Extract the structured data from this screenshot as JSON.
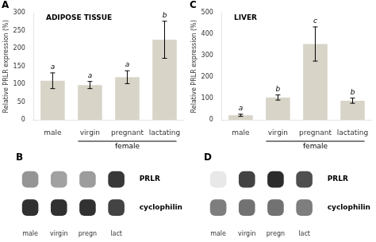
{
  "chart_data": [
    {
      "type": "bar",
      "title": "A",
      "subtitle": "ADIPOSE TISSUE",
      "categories": [
        "male",
        "virgin",
        "pregnant",
        "lactating"
      ],
      "values": [
        110,
        98,
        120,
        225
      ],
      "errors": [
        22,
        10,
        18,
        52
      ],
      "color": "#d8d4c8",
      "ylabel": "Relative PRLR expression (%)",
      "ylim": [
        0,
        300
      ],
      "yticks": [
        0,
        50,
        100,
        150,
        200,
        250,
        300
      ],
      "grid": false,
      "annotations": [
        {
          "text": "a",
          "category": "male"
        },
        {
          "text": "a",
          "category": "virgin"
        },
        {
          "text": "a",
          "category": "pregnant"
        },
        {
          "text": "b",
          "category": "lactating"
        },
        {
          "text": "female",
          "categories": [
            "virgin",
            "pregnant",
            "lactating"
          ]
        }
      ]
    },
    {
      "type": "bar",
      "title": "C",
      "subtitle": "LIVER",
      "categories": [
        "male",
        "virgin",
        "pregnant",
        "lactating"
      ],
      "values": [
        22,
        105,
        355,
        90
      ],
      "errors": [
        5,
        12,
        80,
        12
      ],
      "color": "#d8d4c8",
      "ylabel": "Relative PRLR expression (%)",
      "ylim": [
        0,
        500
      ],
      "yticks": [
        0,
        100,
        200,
        300,
        400,
        500
      ],
      "grid": false,
      "annotations": [
        {
          "text": "a",
          "category": "male"
        },
        {
          "text": "b",
          "category": "virgin"
        },
        {
          "text": "c",
          "category": "pregnant"
        },
        {
          "text": "b",
          "category": "lactating"
        },
        {
          "text": "female",
          "categories": [
            "virgin",
            "pregnant",
            "lactating"
          ]
        }
      ]
    },
    {
      "type": "heatmap",
      "title": "B",
      "categories": [
        "male",
        "virgin",
        "pregn",
        "lact"
      ],
      "series": [
        {
          "name": "PRLR",
          "values": [
            0.45,
            0.4,
            0.42,
            0.85
          ]
        },
        {
          "name": "cyclophilin",
          "values": [
            0.88,
            0.88,
            0.88,
            0.8
          ]
        }
      ],
      "grid": false
    },
    {
      "type": "heatmap",
      "title": "D",
      "categories": [
        "male",
        "virgin",
        "pregn",
        "lact"
      ],
      "series": [
        {
          "name": "PRLR",
          "values": [
            0.1,
            0.8,
            0.9,
            0.75
          ]
        },
        {
          "name": "cyclophilin",
          "values": [
            0.55,
            0.6,
            0.6,
            0.55
          ]
        }
      ],
      "grid": false
    }
  ]
}
